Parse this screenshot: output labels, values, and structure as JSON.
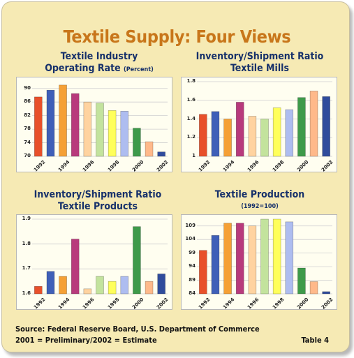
{
  "title": "Textile Supply: Four Views",
  "footer": {
    "source": "Source: Federal Reserve Board, U.S. Department of Commerce",
    "note": "2001 = Preliminary/2002 = Estimate",
    "table": "Table 4"
  },
  "colors": [
    "#e8502a",
    "#3f5fb8",
    "#f5a035",
    "#b83a7c",
    "#ffd3a0",
    "#c3e39d",
    "#ffff5a",
    "#aebdf0",
    "#3e9a4a",
    "#ffb98a",
    "#304c9c"
  ],
  "chart_data": [
    {
      "type": "bar",
      "title": "Textile Industry",
      "title2": "Operating Rate",
      "subtitle": "(Percent)",
      "categories": [
        "1992",
        "1993",
        "1994",
        "1995",
        "1996",
        "1997",
        "1998",
        "1999",
        "2000",
        "2001",
        "2002"
      ],
      "values": [
        87.5,
        89.5,
        91.0,
        88.5,
        86.0,
        85.7,
        83.5,
        83.3,
        78.3,
        74.3,
        71.3
      ],
      "ylim": [
        70,
        92
      ],
      "yticks": [
        "70",
        "74",
        "78",
        "82",
        "86",
        "90"
      ],
      "xticks": [
        "1992",
        "1994",
        "1996",
        "1998",
        "2000",
        "2002"
      ]
    },
    {
      "type": "bar",
      "title": "Inventory/Shipment Ratio",
      "title2": "Textile Mills",
      "categories": [
        "1992",
        "1993",
        "1994",
        "1995",
        "1996",
        "1997",
        "1998",
        "1999",
        "2000",
        "2001",
        "2002"
      ],
      "values": [
        1.45,
        1.48,
        1.4,
        1.58,
        1.43,
        1.4,
        1.52,
        1.5,
        1.63,
        1.7,
        1.64
      ],
      "ylim": [
        1.0,
        1.8
      ],
      "yticks": [
        "1",
        "1.2",
        "1.4",
        "1.6",
        "1.8"
      ],
      "xticks": [
        "1992",
        "1994",
        "1996",
        "1998",
        "2000",
        "2002"
      ]
    },
    {
      "type": "bar",
      "title": "Inventory/Shipment Ratio",
      "title2": "Textile Products",
      "categories": [
        "1992",
        "1993",
        "1994",
        "1995",
        "1996",
        "1997",
        "1998",
        "1999",
        "2000",
        "2001",
        "2002"
      ],
      "values": [
        1.63,
        1.69,
        1.67,
        1.82,
        1.62,
        1.67,
        1.65,
        1.67,
        1.87,
        1.65,
        1.68
      ],
      "ylim": [
        1.6,
        1.9
      ],
      "yticks": [
        "1.6",
        "1.7",
        "1.8",
        "1.9"
      ],
      "xticks": [
        "1992",
        "1994",
        "1996",
        "1998",
        "2000",
        "2002"
      ]
    },
    {
      "type": "bar",
      "title": "Textile Production",
      "subtitle": "(1992=100)",
      "categories": [
        "1992",
        "1993",
        "1994",
        "1995",
        "1996",
        "1997",
        "1998",
        "1999",
        "2000",
        "2001",
        "2002"
      ],
      "values": [
        100.0,
        105.5,
        110.0,
        110.0,
        109.0,
        111.5,
        111.5,
        110.5,
        93.5,
        88.5,
        84.8
      ],
      "ylim": [
        84,
        111.5
      ],
      "yticks": [
        "84",
        "89",
        "94",
        "99",
        "104",
        "109"
      ],
      "xticks": [
        "1992",
        "1994",
        "1996",
        "1998",
        "2000",
        "2002"
      ]
    }
  ]
}
